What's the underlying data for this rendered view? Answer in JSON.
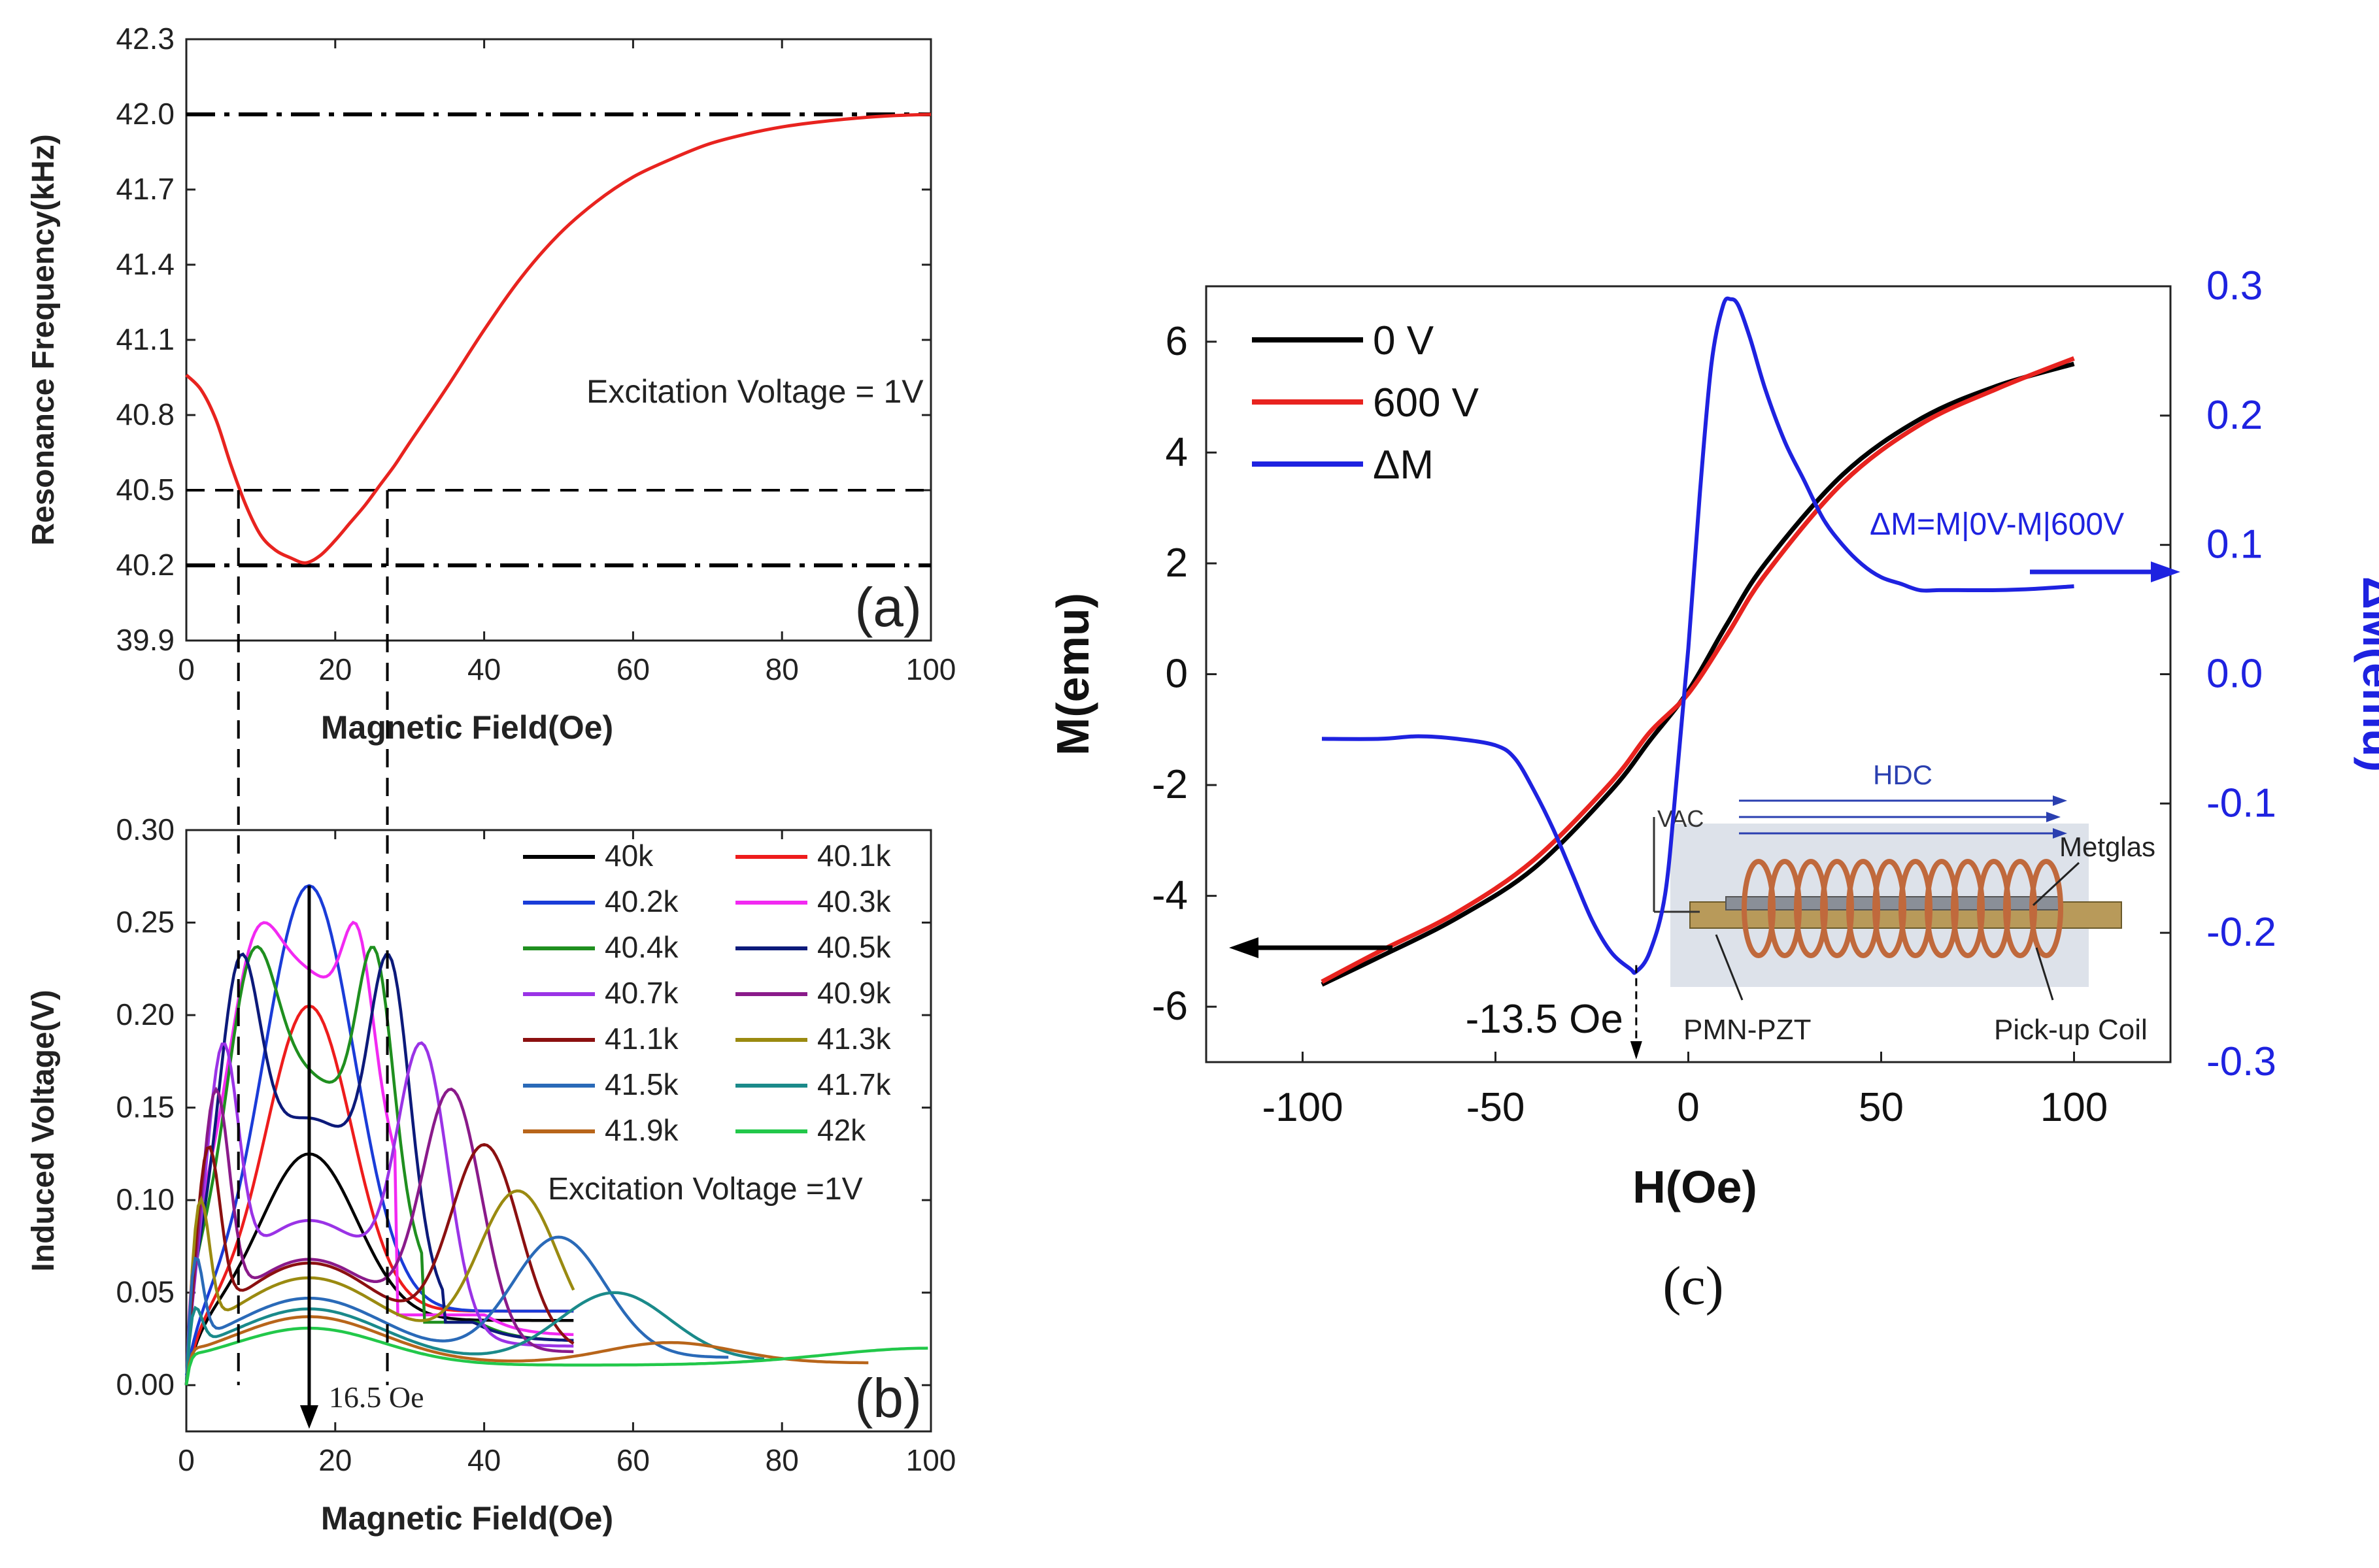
{
  "chart_data": [
    {
      "panel": "a",
      "type": "line",
      "panel_label": "(a)",
      "xlabel": "Magnetic Field(Oe)",
      "ylabel": "Resonance Frequency(kHz)",
      "xlim": [
        0,
        100
      ],
      "ylim": [
        39.9,
        42.3
      ],
      "xticks": [
        "0",
        "20",
        "40",
        "60",
        "80",
        "100"
      ],
      "yticks": [
        "39.9",
        "40.2",
        "40.5",
        "40.8",
        "41.1",
        "41.4",
        "41.7",
        "42.0",
        "42.3"
      ],
      "annotation": "Excitation Voltage = 1V",
      "reference_lines": [
        {
          "y": 42.0,
          "style": "dash-dot"
        },
        {
          "y": 40.5,
          "style": "dashed",
          "x_range": [
            7,
            27
          ]
        },
        {
          "y": 40.2,
          "style": "dash-dot"
        }
      ],
      "vertical_guides_x": [
        7,
        27
      ],
      "series": [
        {
          "color": "#e8231f",
          "x": [
            0,
            2,
            4,
            6,
            8,
            10,
            12,
            14,
            16,
            18,
            20,
            22,
            24,
            26,
            28,
            30,
            35,
            40,
            45,
            50,
            55,
            60,
            65,
            70,
            75,
            80,
            85,
            90,
            95,
            100
          ],
          "y": [
            40.96,
            40.9,
            40.78,
            40.6,
            40.44,
            40.32,
            40.26,
            40.23,
            40.21,
            40.24,
            40.3,
            40.37,
            40.44,
            40.52,
            40.6,
            40.69,
            40.91,
            41.14,
            41.35,
            41.52,
            41.65,
            41.75,
            41.82,
            41.88,
            41.92,
            41.95,
            41.97,
            41.985,
            41.995,
            42.0
          ]
        }
      ]
    },
    {
      "panel": "b",
      "type": "line",
      "panel_label": "(b)",
      "xlabel": "Magnetic Field(Oe)",
      "ylabel": "Induced Voltage(V)",
      "xlim": [
        0,
        100
      ],
      "ylim": [
        -0.025,
        0.3
      ],
      "xticks": [
        "0",
        "20",
        "40",
        "60",
        "80",
        "100"
      ],
      "yticks": [
        "0.00",
        "0.05",
        "0.10",
        "0.15",
        "0.20",
        "0.25",
        "0.30"
      ],
      "annotation": "Excitation Voltage =1V",
      "arrow_label": "16.5 Oe",
      "arrow_x": 16.5,
      "series": [
        {
          "name": "40k",
          "color": "#000000",
          "peak_x": 16.5,
          "peak_y": 0.125,
          "end_x": 52,
          "base": 0.035
        },
        {
          "name": "40.1k",
          "color": "#ee1c1c",
          "peak_x": 16.5,
          "peak_y": 0.205,
          "end_x": 52,
          "base": 0.04
        },
        {
          "name": "40.2k",
          "color": "#1a3cd8",
          "peak_x": 16.5,
          "peak_y": 0.27,
          "end_x": 52,
          "base": 0.04
        },
        {
          "name": "40.3k",
          "color": "#f229f2",
          "peak_x": 16.5,
          "peak_y": 0.25,
          "end_x": 52,
          "base": 0.045
        },
        {
          "name": "40.4k",
          "color": "#1f8f1f",
          "peak_x": 16.5,
          "peak_y": 0.237,
          "end_x": 52,
          "base": 0.04
        },
        {
          "name": "40.5k",
          "color": "#0c1a7a",
          "peak_x": 16.5,
          "peak_y": 0.233,
          "end_x": 52,
          "base": 0.04
        },
        {
          "name": "40.7k",
          "color": "#9a33e6",
          "peak_x": 16.5,
          "peak_y": 0.185,
          "end_x": 52,
          "base": 0.035
        },
        {
          "name": "40.9k",
          "color": "#8a1a8a",
          "peak_x": 16.5,
          "peak_y": 0.16,
          "end_x": 52,
          "base": 0.03
        },
        {
          "name": "41.1k",
          "color": "#8b1010",
          "peak_x": 16.5,
          "peak_y": 0.13,
          "end_x": 52,
          "base": 0.03
        },
        {
          "name": "41.3k",
          "color": "#9a8a10",
          "peak_x": 16.5,
          "peak_y": 0.105,
          "end_x": 52,
          "base": 0.03
        },
        {
          "name": "41.5k",
          "color": "#2a6ab8",
          "peak_x": 16.5,
          "peak_y": 0.08,
          "end_x": 73,
          "base": 0.025
        },
        {
          "name": "41.7k",
          "color": "#1a8a8a",
          "peak_x": 16.5,
          "peak_y": 0.05,
          "end_x": 78,
          "base": 0.022
        },
        {
          "name": "41.9k",
          "color": "#b8651a",
          "peak_x": 16.5,
          "peak_y": 0.023,
          "end_x": 92,
          "base": 0.02
        },
        {
          "name": "42k",
          "color": "#22c84a",
          "peak_x": 16.5,
          "peak_y": 0.02,
          "end_x": 100,
          "base": 0.018
        }
      ]
    },
    {
      "panel": "c",
      "type": "line",
      "panel_label": "(c)",
      "xlabel": "H(Oe)",
      "ylabel": "M(emu)",
      "y2label": "ΔM(emu)",
      "xlim": [
        -125,
        125
      ],
      "ylim": [
        -7,
        7
      ],
      "y2lim": [
        -0.3,
        0.3
      ],
      "xticks": [
        "-100",
        "-50",
        "0",
        "50",
        "100"
      ],
      "yticks": [
        "-6",
        "-4",
        "-2",
        "0",
        "2",
        "4",
        "6"
      ],
      "y2ticks": [
        "-0.3",
        "-0.2",
        "-0.1",
        "0.0",
        "0.1",
        "0.2",
        "0.3"
      ],
      "delta_equation": "ΔM=M|0V-M|600V",
      "min_annotation": "-13.5 Oe",
      "inset": {
        "h_dc": "HDC",
        "v_ac": "VAC",
        "metglas": "Metglas",
        "pmn_pzt": "PMN-PZT",
        "coil": "Pick-up Coil"
      },
      "series": [
        {
          "name": "0 V",
          "color": "#000000",
          "axis": "left",
          "x": [
            -95,
            -80,
            -60,
            -40,
            -20,
            -10,
            0,
            10,
            20,
            40,
            60,
            80,
            100
          ],
          "y": [
            -5.6,
            -5.1,
            -4.4,
            -3.5,
            -2.1,
            -1.2,
            -0.3,
            0.9,
            2.0,
            3.6,
            4.6,
            5.2,
            5.6
          ]
        },
        {
          "name": "600 V",
          "color": "#e8231f",
          "axis": "left",
          "x": [
            -95,
            -80,
            -60,
            -40,
            -20,
            -10,
            0,
            10,
            20,
            40,
            60,
            80,
            100
          ],
          "y": [
            -5.55,
            -5.0,
            -4.3,
            -3.35,
            -1.95,
            -1.05,
            -0.35,
            0.7,
            1.8,
            3.45,
            4.5,
            5.15,
            5.7
          ]
        },
        {
          "name": "ΔM",
          "color": "#1e22e0",
          "axis": "right",
          "x": [
            -95,
            -80,
            -70,
            -60,
            -50,
            -45,
            -40,
            -35,
            -30,
            -25,
            -20,
            -15,
            -13.5,
            -10,
            -6,
            -3,
            0,
            3,
            6,
            9,
            11,
            13,
            16,
            20,
            25,
            30,
            35,
            40,
            45,
            50,
            55,
            60,
            65,
            70,
            80,
            90,
            100
          ],
          "y": [
            -0.05,
            -0.05,
            -0.048,
            -0.05,
            -0.055,
            -0.065,
            -0.09,
            -0.12,
            -0.155,
            -0.19,
            -0.215,
            -0.228,
            -0.23,
            -0.215,
            -0.17,
            -0.08,
            0.02,
            0.14,
            0.24,
            0.285,
            0.29,
            0.285,
            0.26,
            0.22,
            0.18,
            0.15,
            0.12,
            0.1,
            0.085,
            0.075,
            0.07,
            0.065,
            0.065,
            0.065,
            0.065,
            0.066,
            0.068
          ]
        }
      ]
    }
  ]
}
